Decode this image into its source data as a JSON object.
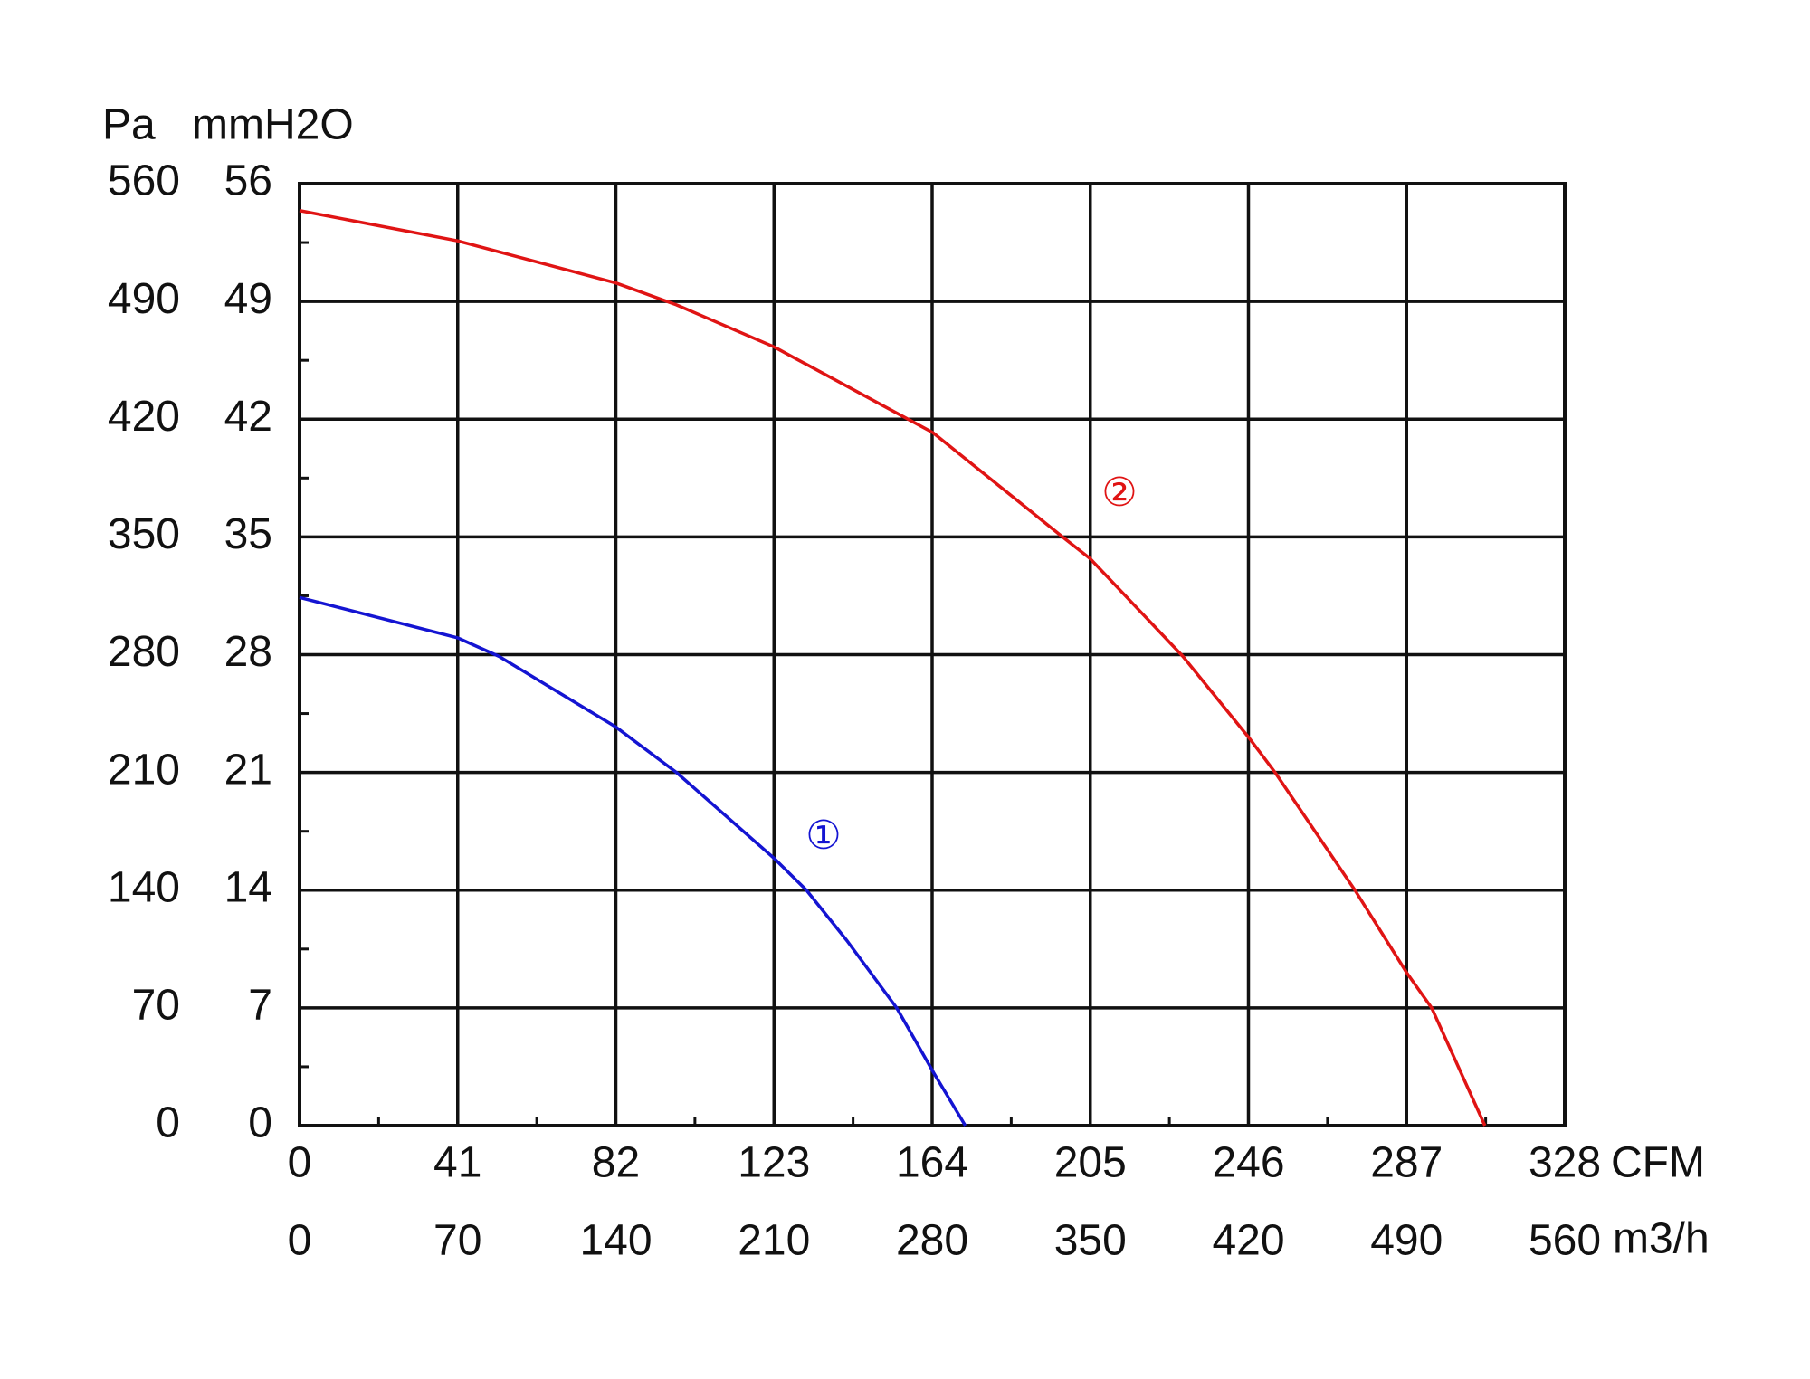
{
  "chart_data": {
    "type": "line",
    "y_unit": "Pa",
    "y2_unit": "mmH2O",
    "x_unit": "CFM",
    "x2_unit": "m3/h",
    "xlim": [
      0,
      328
    ],
    "xticks": [
      0,
      41,
      82,
      123,
      164,
      205,
      246,
      287,
      328
    ],
    "x2lim": [
      0,
      560
    ],
    "x2ticks": [
      0,
      70,
      140,
      210,
      280,
      350,
      420,
      490,
      560
    ],
    "ylim": [
      0,
      560
    ],
    "yticks": [
      0,
      70,
      140,
      210,
      280,
      350,
      420,
      490,
      560
    ],
    "y2lim": [
      0,
      56
    ],
    "y2ticks": [
      0,
      7,
      14,
      21,
      28,
      35,
      42,
      49,
      56
    ],
    "grid": true,
    "series": [
      {
        "name": "①",
        "color": "#1414d2",
        "x": [
          0,
          41,
          51.7,
          82,
          97.7,
          123,
          131.4,
          141.9,
          154.8,
          164.5,
          172.6
        ],
        "values": [
          314,
          290,
          279,
          237,
          210,
          159,
          140,
          110,
          70,
          31,
          0
        ]
      },
      {
        "name": "②",
        "color": "#e01414",
        "x": [
          0,
          41,
          82,
          97.7,
          123,
          164.2,
          197.8,
          205,
          229,
          246,
          252.9,
          273.6,
          287,
          293.5,
          307.3
        ],
        "values": [
          544,
          526,
          501,
          488,
          463,
          412,
          350,
          337,
          279,
          231,
          210,
          140,
          91,
          70,
          0
        ]
      }
    ]
  }
}
